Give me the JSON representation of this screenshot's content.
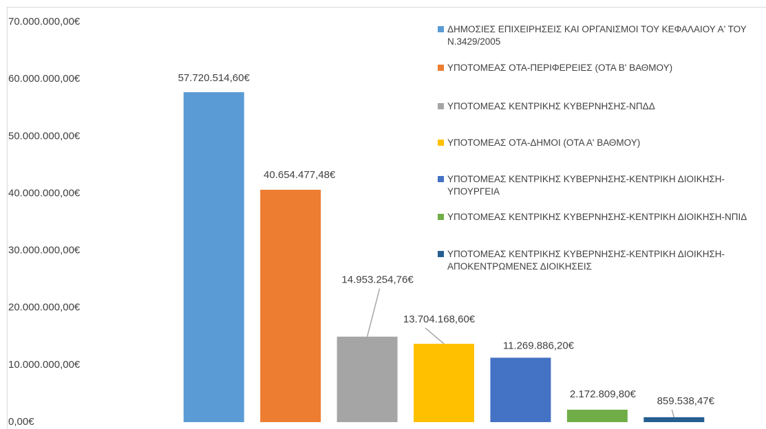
{
  "chart_data": {
    "type": "bar",
    "series": [
      {
        "name": "ΔΗΜΟΣΙΕΣ ΕΠΙΧΕΙΡΗΣΕΙΣ ΚΑΙ ΟΡΓΑΝΙΣΜΟΙ ΤΟΥ ΚΕΦΑΛΑΙΟΥ Α' ΤΟΥ Ν.3429/2005",
        "color": "#5b9bd5",
        "values": [
          57720514.6
        ],
        "value_labels": [
          "57.720.514,60€"
        ]
      },
      {
        "name": "ΥΠΟΤΟΜΕΑΣ ΟΤΑ-ΠΕΡΙΦΕΡΕΙΕΣ (ΟΤΑ Β' ΒΑΘΜΟΥ)",
        "color": "#ed7d31",
        "values": [
          40654477.48
        ],
        "value_labels": [
          "40.654.477,48€"
        ]
      },
      {
        "name": "ΥΠΟΤΟΜΕΑΣ ΚΕΝΤΡΙΚΗΣ ΚΥΒΕΡΝΗΣΗΣ-ΝΠΔΔ",
        "color": "#a5a5a5",
        "values": [
          14953254.76
        ],
        "value_labels": [
          "14.953.254,76€"
        ]
      },
      {
        "name": "ΥΠΟΤΟΜΕΑΣ ΟΤΑ-ΔΗΜΟΙ (ΟΤΑ Α' ΒΑΘΜΟΥ)",
        "color": "#ffc000",
        "values": [
          13704168.6
        ],
        "value_labels": [
          "13.704.168,60€"
        ]
      },
      {
        "name": "ΥΠΟΤΟΜΕΑΣ ΚΕΝΤΡΙΚΗΣ ΚΥΒΕΡΝΗΣΗΣ-ΚΕΝΤΡΙΚΗ ΔΙΟΙΚΗΣΗ-ΥΠΟΥΡΓΕΙΑ",
        "color": "#4472c4",
        "values": [
          11269886.2
        ],
        "value_labels": [
          "11.269.886,20€"
        ]
      },
      {
        "name": "ΥΠΟΤΟΜΕΑΣ ΚΕΝΤΡΙΚΗΣ ΚΥΒΕΡΝΗΣΗΣ-ΚΕΝΤΡΙΚΗ ΔΙΟΙΚΗΣΗ-ΝΠΙΔ",
        "color": "#70ad47",
        "values": [
          2172809.8
        ],
        "value_labels": [
          "2.172.809,80€"
        ]
      },
      {
        "name": "ΥΠΟΤΟΜΕΑΣ ΚΕΝΤΡΙΚΗΣ ΚΥΒΕΡΝΗΣΗΣ-ΚΕΝΤΡΙΚΗ ΔΙΟΙΚΗΣΗ-ΑΠΟΚΕΝΤΡΩΜΕΝΕΣ ΔΙΟΙΚΗΣΕΙΣ",
        "color": "#255e91",
        "values": [
          859538.47
        ],
        "value_labels": [
          "859.538,47€"
        ]
      }
    ],
    "ylim": [
      0,
      70000000
    ],
    "yticks": [
      {
        "value": 0,
        "label": "0,00€"
      },
      {
        "value": 10000000,
        "label": "10.000.000,00€"
      },
      {
        "value": 20000000,
        "label": "20.000.000,00€"
      },
      {
        "value": 30000000,
        "label": "30.000.000,00€"
      },
      {
        "value": 40000000,
        "label": "40.000.000,00€"
      },
      {
        "value": 50000000,
        "label": "50.000.000,00€"
      },
      {
        "value": 60000000,
        "label": "60.000.000,00€"
      },
      {
        "value": 70000000,
        "label": "70.000.000,00€"
      }
    ],
    "grid": false,
    "legend": "right"
  }
}
